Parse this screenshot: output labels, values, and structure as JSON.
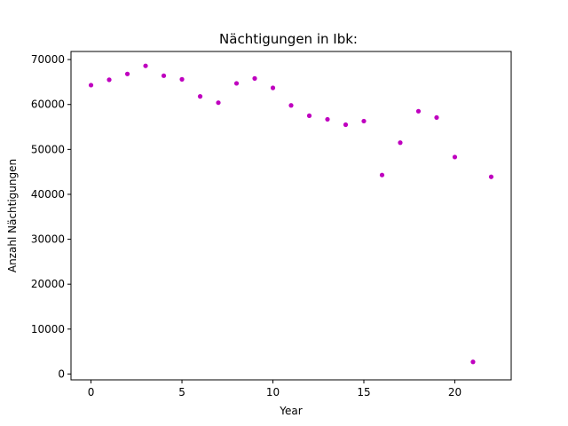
{
  "chart_data": {
    "type": "scatter",
    "title": "Nächtigungen in Ibk:",
    "xlabel": "Year",
    "ylabel": "Anzahl Nächtigungen",
    "xlim": [
      -1.1,
      23.1
    ],
    "ylim": [
      -1300,
      71800
    ],
    "x_ticks": [
      0,
      5,
      10,
      15,
      20
    ],
    "y_ticks": [
      0,
      10000,
      20000,
      30000,
      40000,
      50000,
      60000,
      70000
    ],
    "marker_color": "#bf00bf",
    "grid": false,
    "series": [
      {
        "x": [
          0,
          1,
          2,
          3,
          4,
          5,
          6,
          7,
          8,
          9,
          10,
          11,
          12,
          13,
          14,
          15,
          16,
          17,
          18,
          19,
          20,
          21,
          22
        ],
        "y": [
          64300,
          65500,
          66800,
          68600,
          66400,
          65600,
          61800,
          60400,
          64700,
          65800,
          63700,
          59800,
          57500,
          56700,
          55500,
          56300,
          44300,
          51500,
          58500,
          57100,
          48300,
          2700,
          43900
        ]
      }
    ]
  }
}
